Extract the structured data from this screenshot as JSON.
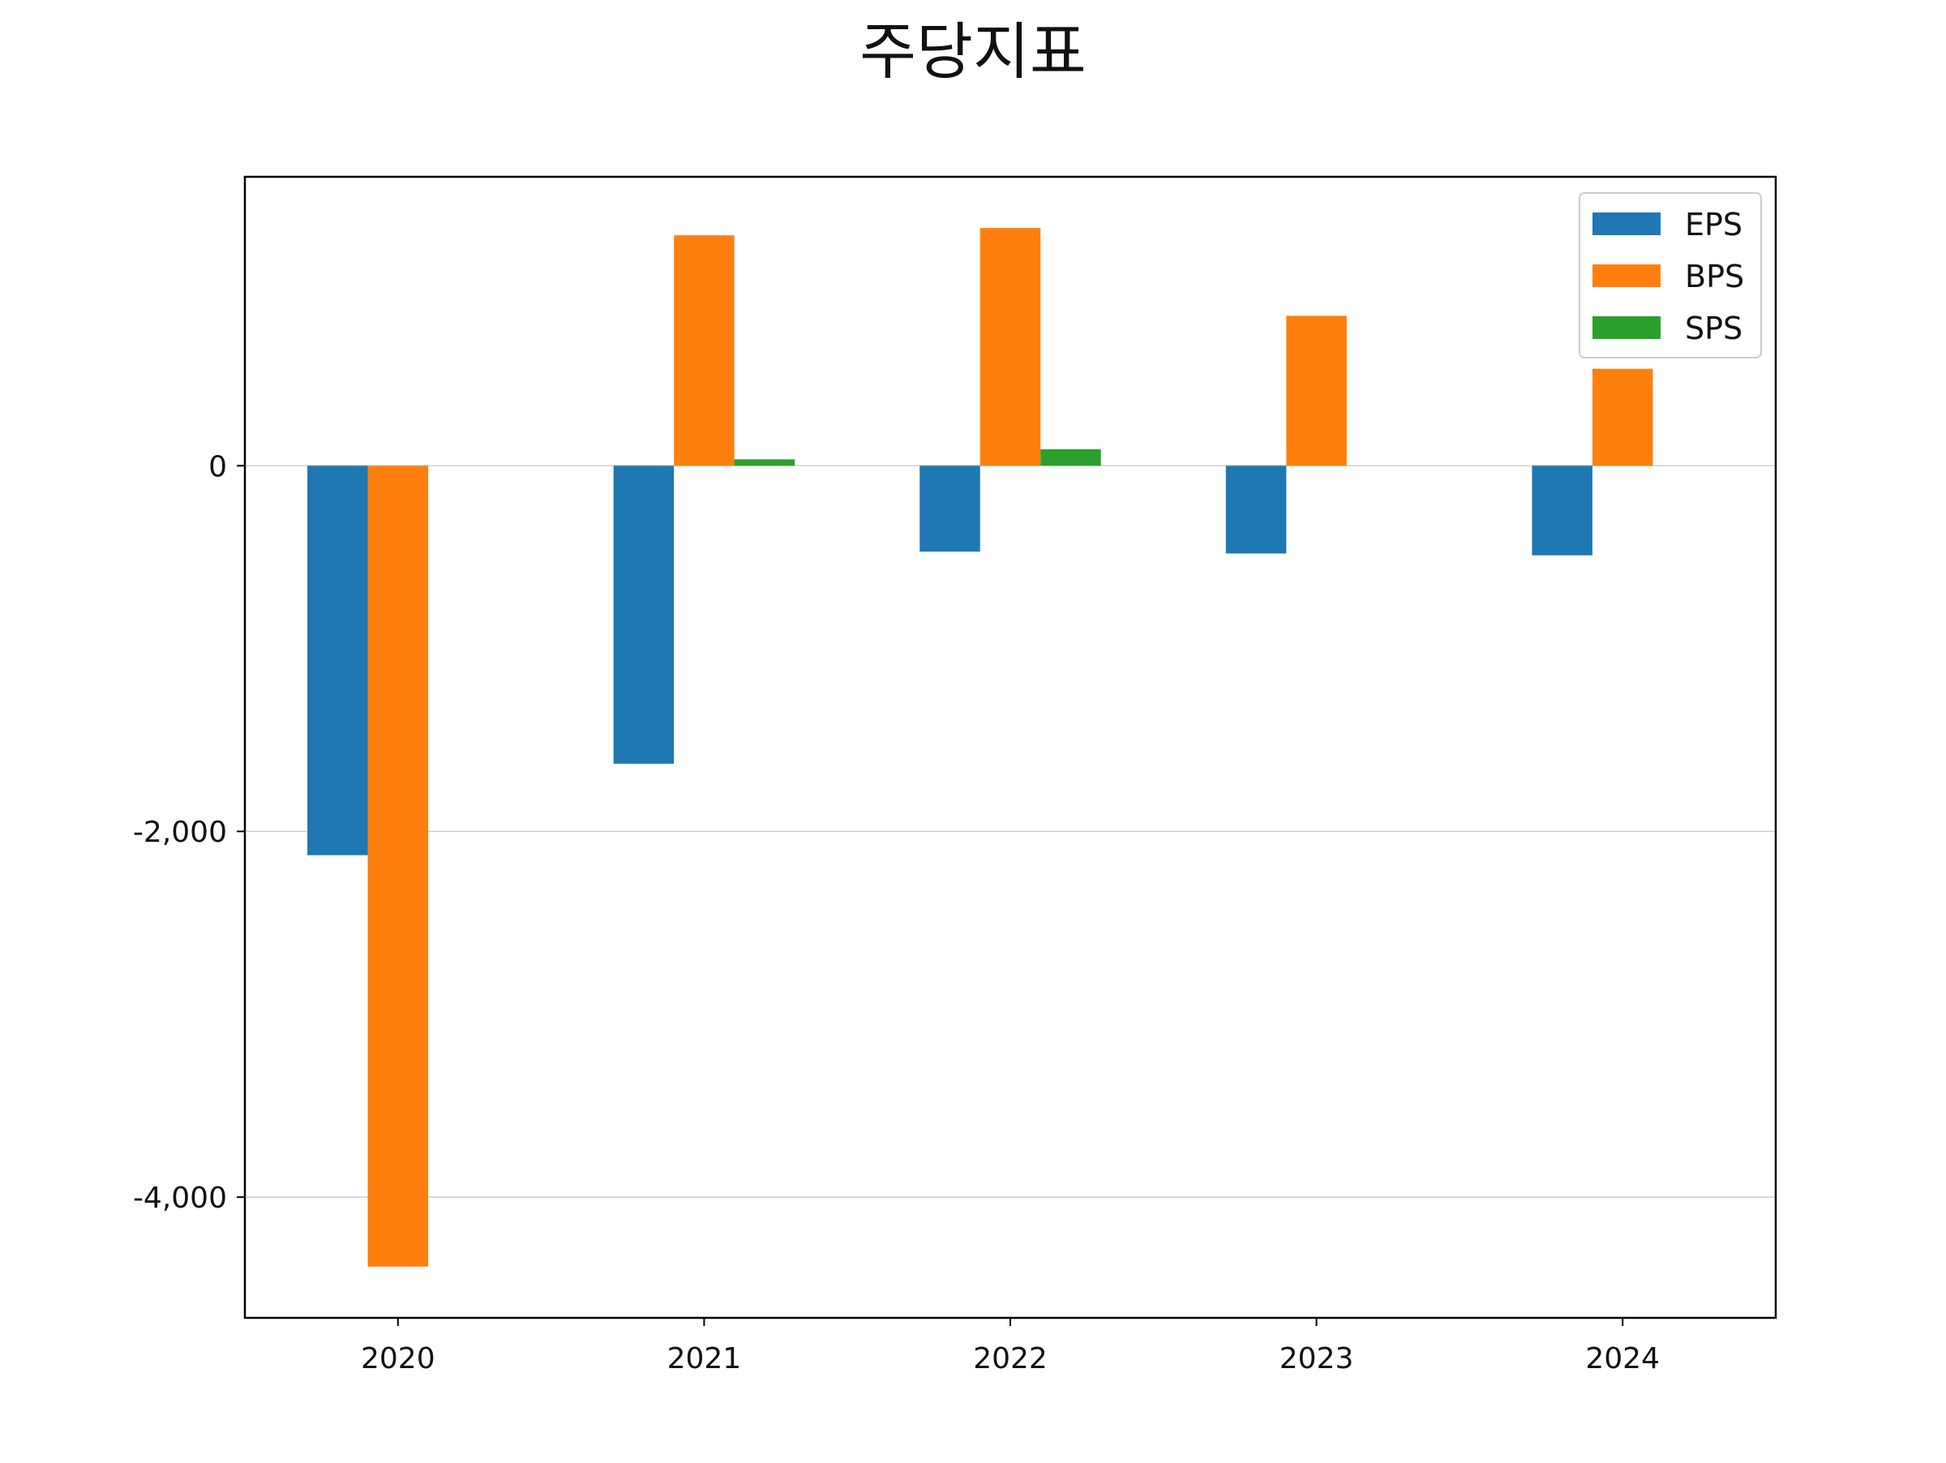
{
  "chart_data": {
    "type": "bar",
    "title": "주당지표",
    "xlabel": "",
    "ylabel": "",
    "categories": [
      "2020",
      "2021",
      "2022",
      "2023",
      "2024"
    ],
    "series": [
      {
        "name": "EPS",
        "color": "#1f77b4",
        "values": [
          -2130,
          -1630,
          -470,
          -480,
          -490
        ]
      },
      {
        "name": "BPS",
        "color": "#ff7f0e",
        "values": [
          -4380,
          1260,
          1300,
          820,
          530
        ]
      },
      {
        "name": "SPS",
        "color": "#2ca02c",
        "values": [
          0,
          35,
          90,
          0,
          0
        ]
      }
    ],
    "ylim": [
      -4660,
      1580
    ],
    "yticks": [
      0,
      -2000,
      -4000
    ],
    "ytick_labels": [
      "0",
      "-2,000",
      "-4,000"
    ],
    "grid": "horizontal",
    "legend_position": "top-right"
  }
}
